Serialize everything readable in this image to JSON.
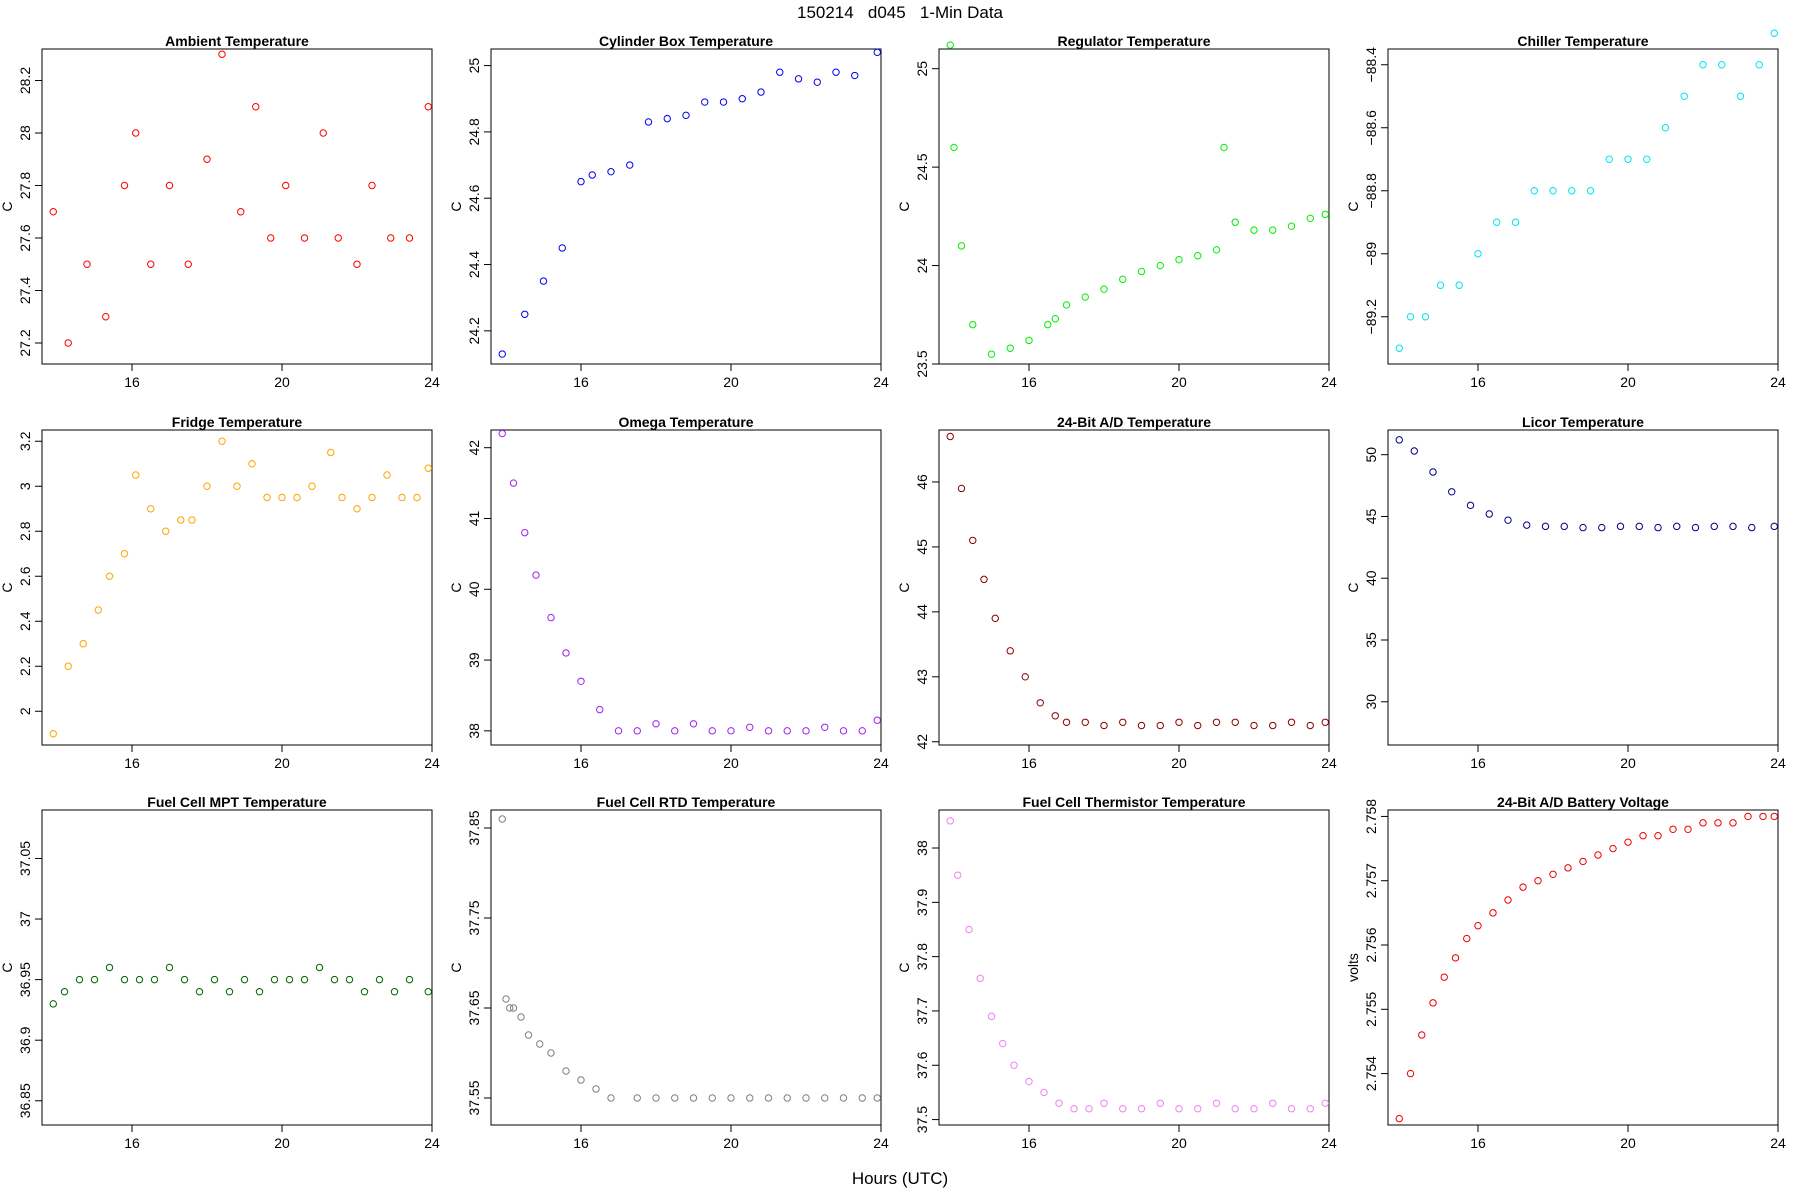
{
  "figure": {
    "title": "150214   d045   1-Min Data",
    "xlabel": "Hours (UTC)"
  },
  "chart_data": [
    {
      "type": "scatter",
      "title": "Ambient Temperature",
      "ylabel": "C",
      "color": "#ff0000",
      "xlim": [
        13.6,
        24.0
      ],
      "ylim": [
        27.12,
        28.32
      ],
      "xticks": [
        16,
        20,
        24
      ],
      "yticks": [
        27.2,
        27.4,
        27.6,
        27.8,
        28.0,
        28.2
      ],
      "series": {
        "x": [
          13.9,
          14.3,
          14.8,
          15.3,
          15.8,
          16.1,
          16.5,
          17.0,
          17.5,
          18.0,
          18.4,
          18.9,
          19.3,
          19.7,
          20.1,
          20.6,
          21.1,
          21.5,
          22.0,
          22.4,
          22.9,
          23.4,
          23.9
        ],
        "y": [
          27.7,
          27.2,
          27.5,
          27.3,
          27.8,
          28.0,
          27.5,
          27.8,
          27.5,
          27.9,
          28.3,
          27.7,
          28.1,
          27.6,
          27.8,
          27.6,
          28.0,
          27.6,
          27.5,
          27.8,
          27.6,
          27.6,
          28.1
        ]
      }
    },
    {
      "type": "scatter",
      "title": "Cylinder Box Temperature",
      "ylabel": "C",
      "color": "#0000ee",
      "xlim": [
        13.6,
        24.0
      ],
      "ylim": [
        24.1,
        25.05
      ],
      "xticks": [
        16,
        20,
        24
      ],
      "yticks": [
        24.2,
        24.4,
        24.6,
        24.8,
        25.0
      ],
      "series": {
        "x": [
          13.9,
          14.5,
          15.0,
          15.5,
          16.0,
          16.3,
          16.8,
          17.3,
          17.8,
          18.3,
          18.8,
          19.3,
          19.8,
          20.3,
          20.8,
          21.3,
          21.8,
          22.3,
          22.8,
          23.3,
          23.9
        ],
        "y": [
          24.13,
          24.25,
          24.35,
          24.45,
          24.65,
          24.67,
          24.68,
          24.7,
          24.83,
          24.84,
          24.85,
          24.89,
          24.89,
          24.9,
          24.92,
          24.98,
          24.96,
          24.95,
          24.98,
          24.97,
          25.04
        ]
      }
    },
    {
      "type": "scatter",
      "title": "Regulator Temperature",
      "ylabel": "C",
      "color": "#00ee00",
      "xlim": [
        13.6,
        24.0
      ],
      "ylim": [
        23.5,
        25.1
      ],
      "xticks": [
        16,
        20,
        24
      ],
      "yticks": [
        23.5,
        24.0,
        24.5,
        25.0
      ],
      "series": {
        "x": [
          13.9,
          14.0,
          14.2,
          14.5,
          15.0,
          15.5,
          16.0,
          16.5,
          16.7,
          17.0,
          17.5,
          18.0,
          18.5,
          19.0,
          19.5,
          20.0,
          20.5,
          21.0,
          21.2,
          21.5,
          22.0,
          22.5,
          23.0,
          23.5,
          23.9
        ],
        "y": [
          25.12,
          24.6,
          24.1,
          23.7,
          23.55,
          23.58,
          23.62,
          23.7,
          23.73,
          23.8,
          23.84,
          23.88,
          23.93,
          23.97,
          24.0,
          24.03,
          24.05,
          24.08,
          24.6,
          24.22,
          24.18,
          24.18,
          24.2,
          24.24,
          24.26
        ]
      }
    },
    {
      "type": "scatter",
      "title": "Chiller Temperature",
      "ylabel": "C",
      "color": "#00e5ee",
      "xlim": [
        13.6,
        24.0
      ],
      "ylim": [
        -89.35,
        -88.35
      ],
      "xticks": [
        16,
        20,
        24
      ],
      "yticks": [
        -89.2,
        -89.0,
        -88.8,
        -88.6,
        -88.4
      ],
      "series": {
        "x": [
          13.9,
          14.2,
          14.6,
          15.0,
          15.5,
          16.0,
          16.5,
          17.0,
          17.5,
          18.0,
          18.5,
          19.0,
          19.5,
          20.0,
          20.5,
          21.0,
          21.5,
          22.0,
          22.5,
          23.0,
          23.5,
          23.9
        ],
        "y": [
          -89.3,
          -89.2,
          -89.2,
          -89.1,
          -89.1,
          -89.0,
          -88.9,
          -88.9,
          -88.8,
          -88.8,
          -88.8,
          -88.8,
          -88.7,
          -88.7,
          -88.7,
          -88.6,
          -88.5,
          -88.4,
          -88.4,
          -88.5,
          -88.4,
          -88.3
        ]
      }
    },
    {
      "type": "scatter",
      "title": "Fridge Temperature",
      "ylabel": "C",
      "color": "#ffa500",
      "xlim": [
        13.6,
        24.0
      ],
      "ylim": [
        1.85,
        3.25
      ],
      "xticks": [
        16,
        20,
        24
      ],
      "yticks": [
        2.0,
        2.2,
        2.4,
        2.6,
        2.8,
        3.0,
        3.2
      ],
      "series": {
        "x": [
          13.9,
          14.3,
          14.7,
          15.1,
          15.4,
          15.8,
          16.1,
          16.5,
          16.9,
          17.3,
          17.6,
          18.0,
          18.4,
          18.8,
          19.2,
          19.6,
          20.0,
          20.4,
          20.8,
          21.3,
          21.6,
          22.0,
          22.4,
          22.8,
          23.2,
          23.6,
          23.9
        ],
        "y": [
          1.9,
          2.2,
          2.3,
          2.45,
          2.6,
          2.7,
          3.05,
          2.9,
          2.8,
          2.85,
          2.85,
          3.0,
          3.2,
          3.0,
          3.1,
          2.95,
          2.95,
          2.95,
          3.0,
          3.15,
          2.95,
          2.9,
          2.95,
          3.05,
          2.95,
          2.95,
          3.08
        ]
      }
    },
    {
      "type": "scatter",
      "title": "Omega Temperature",
      "ylabel": "C",
      "color": "#a020f0",
      "xlim": [
        13.6,
        24.0
      ],
      "ylim": [
        37.8,
        42.25
      ],
      "xticks": [
        16,
        20,
        24
      ],
      "yticks": [
        38,
        39,
        40,
        41,
        42
      ],
      "series": {
        "x": [
          13.9,
          14.2,
          14.5,
          14.8,
          15.2,
          15.6,
          16.0,
          16.5,
          17.0,
          17.5,
          18.0,
          18.5,
          19.0,
          19.5,
          20.0,
          20.5,
          21.0,
          21.5,
          22.0,
          22.5,
          23.0,
          23.5,
          23.9
        ],
        "y": [
          42.2,
          41.5,
          40.8,
          40.2,
          39.6,
          39.1,
          38.7,
          38.3,
          38.0,
          38.0,
          38.1,
          38.0,
          38.1,
          38.0,
          38.0,
          38.05,
          38.0,
          38.0,
          38.0,
          38.05,
          38.0,
          38.0,
          38.15
        ]
      }
    },
    {
      "type": "scatter",
      "title": "24-Bit A/D Temperature",
      "ylabel": "C",
      "color": "#8b0000",
      "xlim": [
        13.6,
        24.0
      ],
      "ylim": [
        41.95,
        46.8
      ],
      "xticks": [
        16,
        20,
        24
      ],
      "yticks": [
        42,
        43,
        44,
        45,
        46
      ],
      "series": {
        "x": [
          13.9,
          14.2,
          14.5,
          14.8,
          15.1,
          15.5,
          15.9,
          16.3,
          16.7,
          17.0,
          17.5,
          18.0,
          18.5,
          19.0,
          19.5,
          20.0,
          20.5,
          21.0,
          21.5,
          22.0,
          22.5,
          23.0,
          23.5,
          23.9
        ],
        "y": [
          46.7,
          45.9,
          45.1,
          44.5,
          43.9,
          43.4,
          43.0,
          42.6,
          42.4,
          42.3,
          42.3,
          42.25,
          42.3,
          42.25,
          42.25,
          42.3,
          42.25,
          42.3,
          42.3,
          42.25,
          42.25,
          42.3,
          42.25,
          42.3
        ]
      }
    },
    {
      "type": "scatter",
      "title": "Licor Temperature",
      "ylabel": "C",
      "color": "#00008b",
      "xlim": [
        13.6,
        24.0
      ],
      "ylim": [
        26.5,
        52.0
      ],
      "xticks": [
        16,
        20,
        24
      ],
      "yticks": [
        30,
        35,
        40,
        45,
        50
      ],
      "series": {
        "x": [
          13.9,
          14.3,
          14.8,
          15.3,
          15.8,
          16.3,
          16.8,
          17.3,
          17.8,
          18.3,
          18.8,
          19.3,
          19.8,
          20.3,
          20.8,
          21.3,
          21.8,
          22.3,
          22.8,
          23.3,
          23.9
        ],
        "y": [
          51.2,
          50.3,
          48.6,
          47.0,
          45.9,
          45.2,
          44.7,
          44.3,
          44.2,
          44.2,
          44.1,
          44.1,
          44.2,
          44.2,
          44.1,
          44.2,
          44.1,
          44.2,
          44.2,
          44.1,
          44.2
        ]
      }
    },
    {
      "type": "scatter",
      "title": "Fuel Cell MPT Temperature",
      "ylabel": "C",
      "color": "#006400",
      "xlim": [
        13.6,
        24.0
      ],
      "ylim": [
        36.83,
        37.09
      ],
      "xticks": [
        16,
        20,
        24
      ],
      "yticks": [
        36.85,
        36.9,
        36.95,
        37.0,
        37.05
      ],
      "series": {
        "x": [
          13.9,
          14.2,
          14.6,
          15.0,
          15.4,
          15.8,
          16.2,
          16.6,
          17.0,
          17.4,
          17.8,
          18.2,
          18.6,
          19.0,
          19.4,
          19.8,
          20.2,
          20.6,
          21.0,
          21.4,
          21.8,
          22.2,
          22.6,
          23.0,
          23.4,
          23.9
        ],
        "y": [
          36.93,
          36.94,
          36.95,
          36.95,
          36.96,
          36.95,
          36.95,
          36.95,
          36.96,
          36.95,
          36.94,
          36.95,
          36.94,
          36.95,
          36.94,
          36.95,
          36.95,
          36.95,
          36.96,
          36.95,
          36.95,
          36.94,
          36.95,
          36.94,
          36.95,
          36.94
        ]
      }
    },
    {
      "type": "scatter",
      "title": "Fuel Cell RTD Temperature",
      "ylabel": "C",
      "color": "#7f7f7f",
      "xlim": [
        13.6,
        24.0
      ],
      "ylim": [
        37.52,
        37.87
      ],
      "xticks": [
        16,
        20,
        24
      ],
      "yticks": [
        37.55,
        37.65,
        37.75,
        37.85
      ],
      "series": {
        "x": [
          13.9,
          14.0,
          14.1,
          14.2,
          14.4,
          14.6,
          14.9,
          15.2,
          15.6,
          16.0,
          16.4,
          16.8,
          17.5,
          18.0,
          18.5,
          19.0,
          19.5,
          20.0,
          20.5,
          21.0,
          21.5,
          22.0,
          22.5,
          23.0,
          23.5,
          23.9
        ],
        "y": [
          37.86,
          37.66,
          37.65,
          37.65,
          37.64,
          37.62,
          37.61,
          37.6,
          37.58,
          37.57,
          37.56,
          37.55,
          37.55,
          37.55,
          37.55,
          37.55,
          37.55,
          37.55,
          37.55,
          37.55,
          37.55,
          37.55,
          37.55,
          37.55,
          37.55,
          37.55
        ]
      }
    },
    {
      "type": "scatter",
      "title": "Fuel Cell Thermistor Temperature",
      "ylabel": "C",
      "color": "#ee82ee",
      "xlim": [
        13.6,
        24.0
      ],
      "ylim": [
        37.49,
        38.07
      ],
      "xticks": [
        16,
        20,
        24
      ],
      "yticks": [
        37.5,
        37.6,
        37.7,
        37.8,
        37.9,
        38.0
      ],
      "series": {
        "x": [
          13.9,
          14.1,
          14.4,
          14.7,
          15.0,
          15.3,
          15.6,
          16.0,
          16.4,
          16.8,
          17.2,
          17.6,
          18.0,
          18.5,
          19.0,
          19.5,
          20.0,
          20.5,
          21.0,
          21.5,
          22.0,
          22.5,
          23.0,
          23.5,
          23.9
        ],
        "y": [
          38.05,
          37.95,
          37.85,
          37.76,
          37.69,
          37.64,
          37.6,
          37.57,
          37.55,
          37.53,
          37.52,
          37.52,
          37.53,
          37.52,
          37.52,
          37.53,
          37.52,
          37.52,
          37.53,
          37.52,
          37.52,
          37.53,
          37.52,
          37.52,
          37.53
        ]
      }
    },
    {
      "type": "scatter",
      "title": "24-Bit A/D Battery Voltage",
      "ylabel": "volts",
      "color": "#ee0000",
      "xlim": [
        13.6,
        24.0
      ],
      "ylim": [
        2.7532,
        2.7581
      ],
      "xticks": [
        16,
        20,
        24
      ],
      "yticks": [
        2.754,
        2.755,
        2.756,
        2.757,
        2.758
      ],
      "series": {
        "x": [
          13.9,
          14.2,
          14.5,
          14.8,
          15.1,
          15.4,
          15.7,
          16.0,
          16.4,
          16.8,
          17.2,
          17.6,
          18.0,
          18.4,
          18.8,
          19.2,
          19.6,
          20.0,
          20.4,
          20.8,
          21.2,
          21.6,
          22.0,
          22.4,
          22.8,
          23.2,
          23.6,
          23.9
        ],
        "y": [
          2.7533,
          2.754,
          2.7546,
          2.7551,
          2.7555,
          2.7558,
          2.7561,
          2.7563,
          2.7565,
          2.7567,
          2.7569,
          2.757,
          2.7571,
          2.7572,
          2.7573,
          2.7574,
          2.7575,
          2.7576,
          2.7577,
          2.7577,
          2.7578,
          2.7578,
          2.7579,
          2.7579,
          2.7579,
          2.758,
          2.758,
          2.758
        ]
      }
    }
  ]
}
